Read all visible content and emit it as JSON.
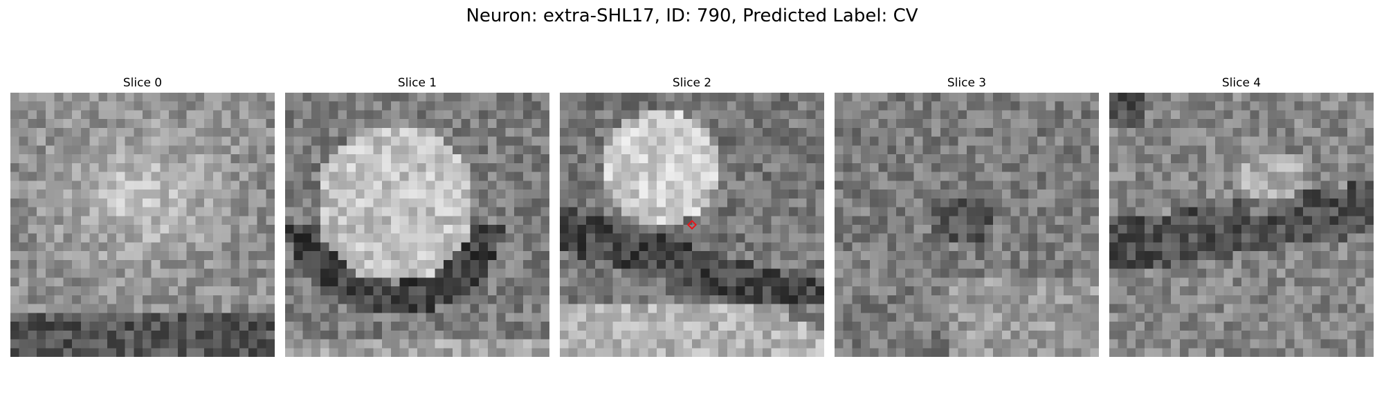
{
  "figure": {
    "title": "Neuron: extra-SHL17, ID: 790, Predicted Label: CV"
  },
  "panels": [
    {
      "label": "Slice 0"
    },
    {
      "label": "Slice 1"
    },
    {
      "label": "Slice 2"
    },
    {
      "label": "Slice 3"
    },
    {
      "label": "Slice 4"
    }
  ],
  "marker": {
    "panel": 2,
    "color": "#e8161b",
    "shape": "diamond",
    "label_text": ""
  },
  "colormap": "gray"
}
